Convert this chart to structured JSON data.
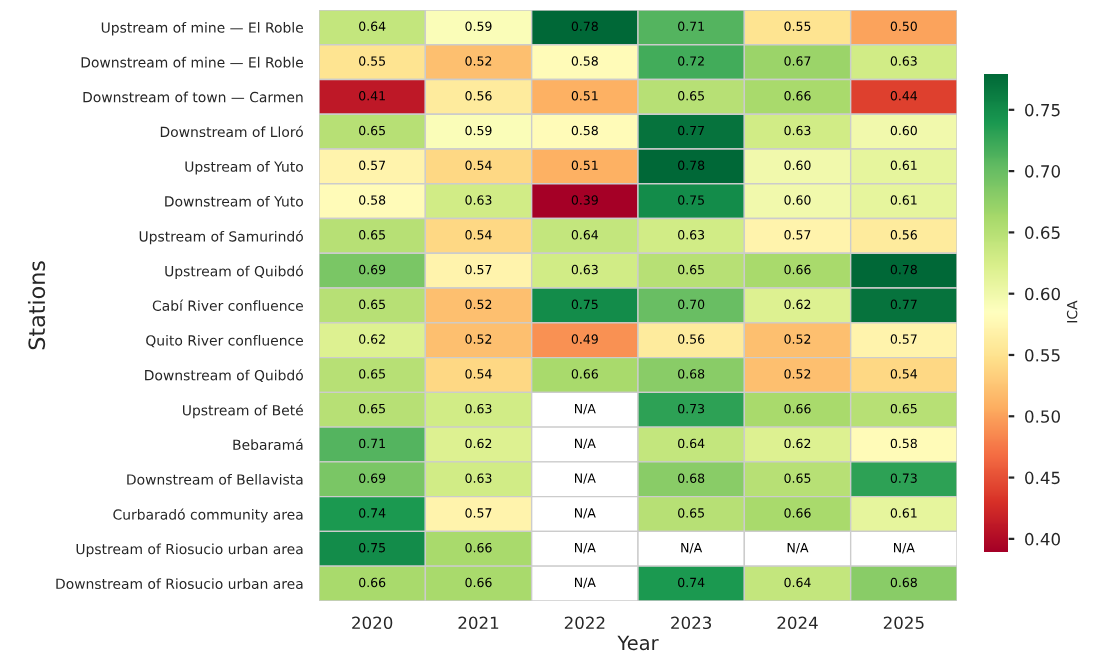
{
  "chart_data": {
    "type": "heatmap",
    "xlabel": "Year",
    "ylabel": "Stations",
    "clabel": "ICA",
    "categories": [
      "2020",
      "2021",
      "2022",
      "2023",
      "2024",
      "2025"
    ],
    "y_categories": [
      "Upstream of mine — El Roble",
      "Downstream of mine — El Roble",
      "Downstream of town — Carmen",
      "Downstream of Lloró",
      "Upstream of Yuto",
      "Downstream of Yuto",
      "Upstream of Samurindó",
      "Upstream of Quibdó",
      "Cabí River confluence",
      "Quito River confluence",
      "Downstream of Quibdó",
      "Upstream of Beté",
      "Bebaramá",
      "Downstream of Bellavista",
      "Curbaradó community area",
      "Upstream of Riosucio urban area",
      "Downstream of Riosucio urban area"
    ],
    "cells": [
      [
        0.64,
        0.59,
        0.78,
        0.71,
        0.55,
        0.5
      ],
      [
        0.55,
        0.52,
        0.58,
        0.72,
        0.67,
        0.63
      ],
      [
        0.41,
        0.56,
        0.51,
        0.65,
        0.66,
        0.44
      ],
      [
        0.65,
        0.59,
        0.58,
        0.77,
        0.63,
        0.6
      ],
      [
        0.57,
        0.54,
        0.51,
        0.78,
        0.6,
        0.61
      ],
      [
        0.58,
        0.63,
        0.39,
        0.75,
        0.6,
        0.61
      ],
      [
        0.65,
        0.54,
        0.64,
        0.63,
        0.57,
        0.56
      ],
      [
        0.69,
        0.57,
        0.63,
        0.65,
        0.66,
        0.78
      ],
      [
        0.65,
        0.52,
        0.75,
        0.7,
        0.62,
        0.77
      ],
      [
        0.62,
        0.52,
        0.49,
        0.56,
        0.52,
        0.57
      ],
      [
        0.65,
        0.54,
        0.66,
        0.68,
        0.52,
        0.54
      ],
      [
        0.65,
        0.63,
        null,
        0.73,
        0.66,
        0.65
      ],
      [
        0.71,
        0.62,
        null,
        0.64,
        0.62,
        0.58
      ],
      [
        0.69,
        0.63,
        null,
        0.68,
        0.65,
        0.73
      ],
      [
        0.74,
        0.57,
        null,
        0.65,
        0.66,
        0.61
      ],
      [
        0.75,
        0.66,
        null,
        null,
        null,
        null
      ],
      [
        0.66,
        0.66,
        null,
        0.74,
        0.64,
        0.68
      ]
    ],
    "cell_labels": [
      [
        "0.64",
        "0.59",
        "0.78",
        "0.71",
        "0.55",
        "0.50"
      ],
      [
        "0.55",
        "0.52",
        "0.58",
        "0.72",
        "0.67",
        "0.63"
      ],
      [
        "0.41",
        "0.56",
        "0.51",
        "0.65",
        "0.66",
        "0.44"
      ],
      [
        "0.65",
        "0.59",
        "0.58",
        "0.77",
        "0.63",
        "0.60"
      ],
      [
        "0.57",
        "0.54",
        "0.51",
        "0.78",
        "0.60",
        "0.61"
      ],
      [
        "0.58",
        "0.63",
        "0.39",
        "0.75",
        "0.60",
        "0.61"
      ],
      [
        "0.65",
        "0.54",
        "0.64",
        "0.63",
        "0.57",
        "0.56"
      ],
      [
        "0.69",
        "0.57",
        "0.63",
        "0.65",
        "0.66",
        "0.78"
      ],
      [
        "0.65",
        "0.52",
        "0.75",
        "0.70",
        "0.62",
        "0.77"
      ],
      [
        "0.62",
        "0.52",
        "0.49",
        "0.56",
        "0.52",
        "0.57"
      ],
      [
        "0.65",
        "0.54",
        "0.66",
        "0.68",
        "0.52",
        "0.54"
      ],
      [
        "0.65",
        "0.63",
        "N/A",
        "0.73",
        "0.66",
        "0.65"
      ],
      [
        "0.71",
        "0.62",
        "N/A",
        "0.64",
        "0.62",
        "0.58"
      ],
      [
        "0.69",
        "0.63",
        "N/A",
        "0.68",
        "0.65",
        "0.73"
      ],
      [
        "0.74",
        "0.57",
        "N/A",
        "0.65",
        "0.66",
        "0.61"
      ],
      [
        "0.75",
        "0.66",
        "N/A",
        "N/A",
        "N/A",
        "N/A"
      ],
      [
        "0.66",
        "0.66",
        "N/A",
        "0.74",
        "0.64",
        "0.68"
      ]
    ],
    "clim": [
      0.39,
      0.78
    ],
    "cticks": [
      {
        "value": 0.4,
        "label": "0.40"
      },
      {
        "value": 0.45,
        "label": "0.45"
      },
      {
        "value": 0.5,
        "label": "0.50"
      },
      {
        "value": 0.55,
        "label": "0.55"
      },
      {
        "value": 0.6,
        "label": "0.60"
      },
      {
        "value": 0.65,
        "label": "0.65"
      },
      {
        "value": 0.7,
        "label": "0.70"
      },
      {
        "value": 0.75,
        "label": "0.75"
      }
    ]
  }
}
